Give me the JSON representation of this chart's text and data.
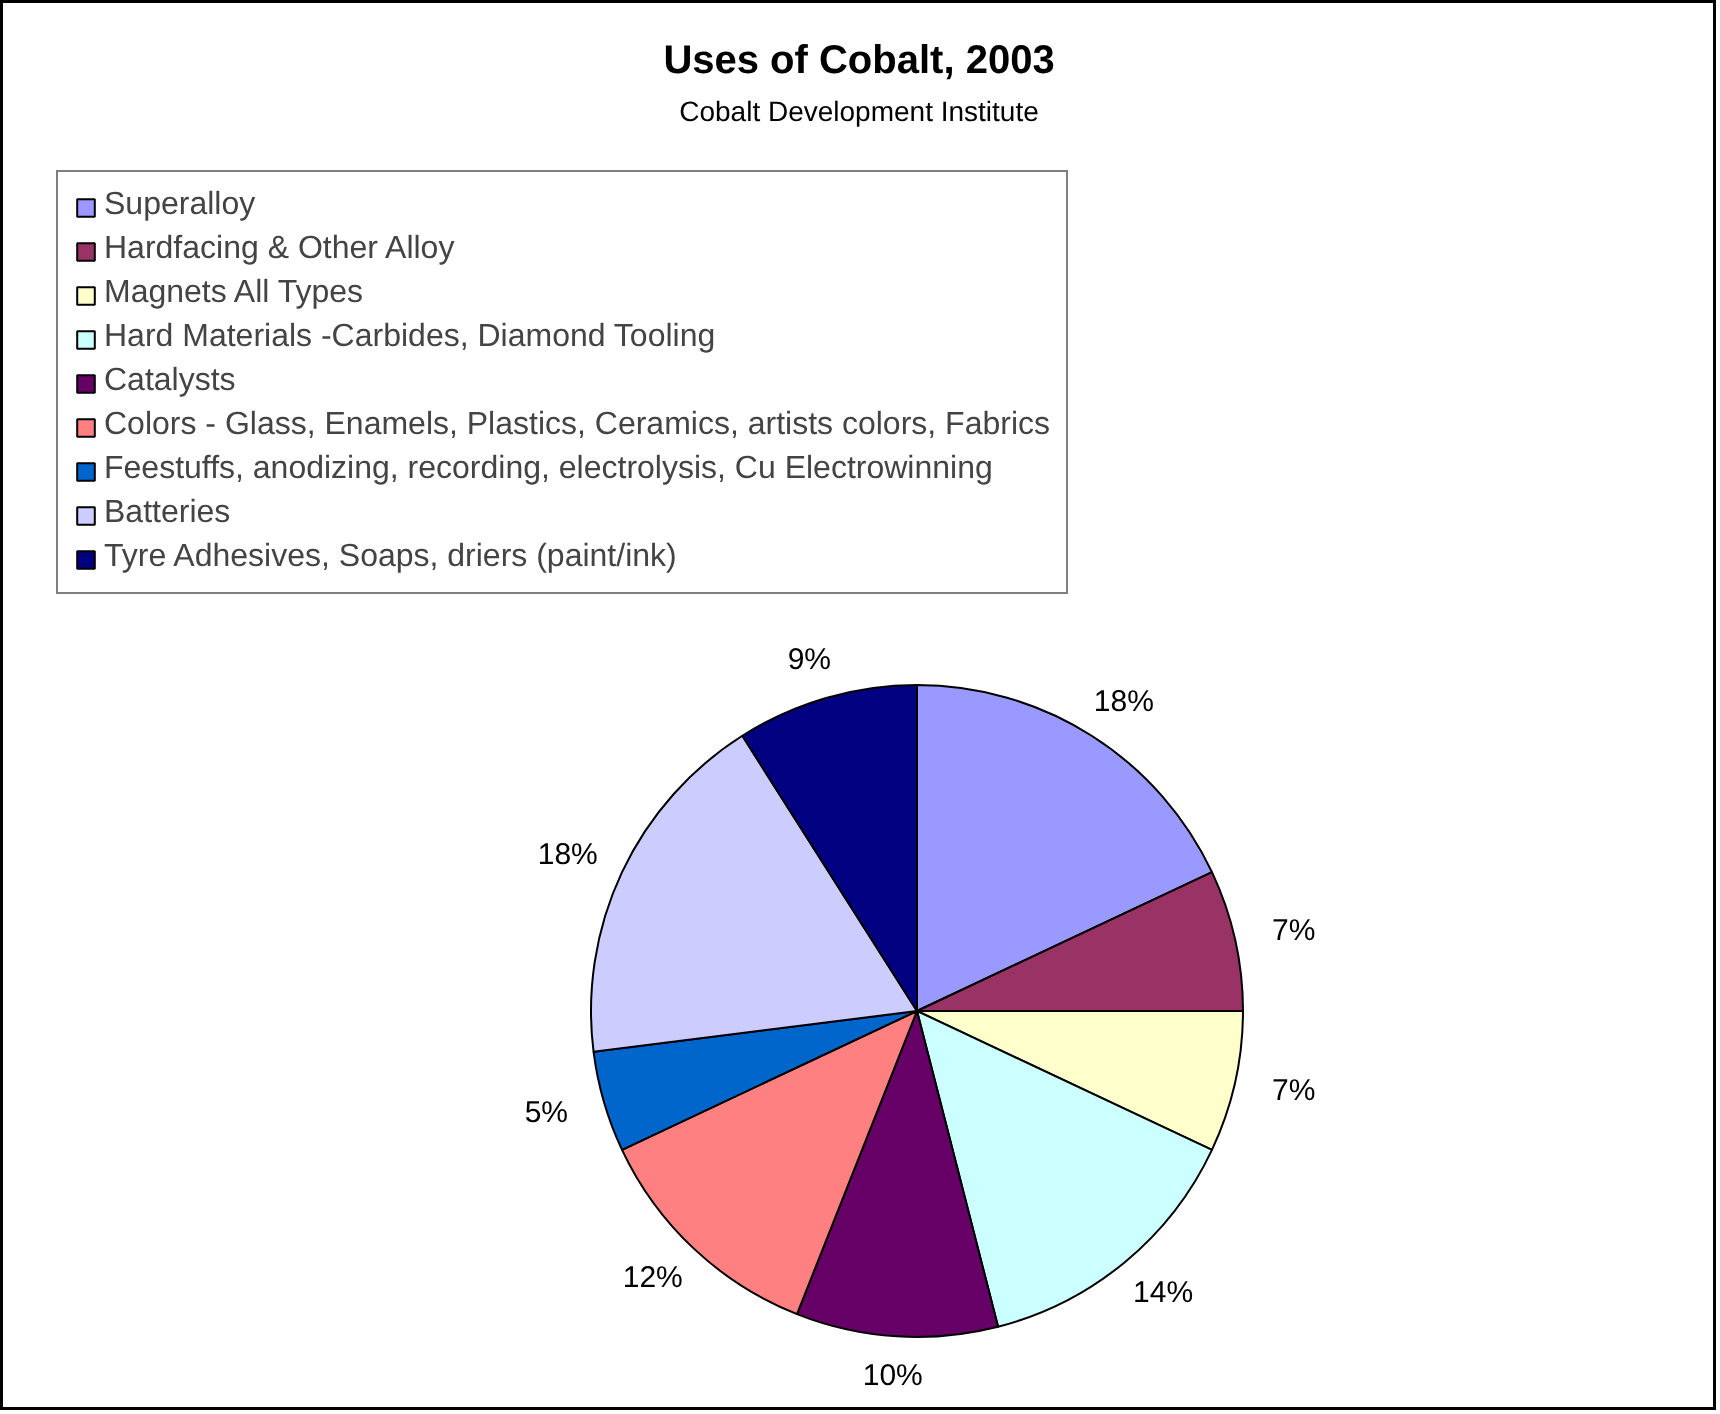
{
  "chart_data": {
    "type": "pie",
    "title": "Uses of Cobalt, 2003",
    "subtitle": "Cobalt Development Institute",
    "categories": [
      "Superalloy",
      "Hardfacing & Other Alloy",
      "Magnets All Types",
      "Hard Materials -Carbides, Diamond Tooling",
      "Catalysts",
      "Colors - Glass, Enamels, Plastics, Ceramics, artists colors, Fabrics",
      "Feestuffs, anodizing, recording, electrolysis, Cu Electrowinning",
      "Batteries",
      "Tyre Adhesives, Soaps, driers (paint/ink)"
    ],
    "values": [
      18,
      7,
      7,
      14,
      10,
      12,
      5,
      18,
      9
    ],
    "value_labels": [
      "18%",
      "7%",
      "7%",
      "14%",
      "10%",
      "12%",
      "5%",
      "18%",
      "9%"
    ],
    "colors": [
      "#9999ff",
      "#993366",
      "#ffffcc",
      "#ccffff",
      "#660066",
      "#ff8080",
      "#0066cc",
      "#ccccff",
      "#000080"
    ],
    "legend": "top"
  }
}
